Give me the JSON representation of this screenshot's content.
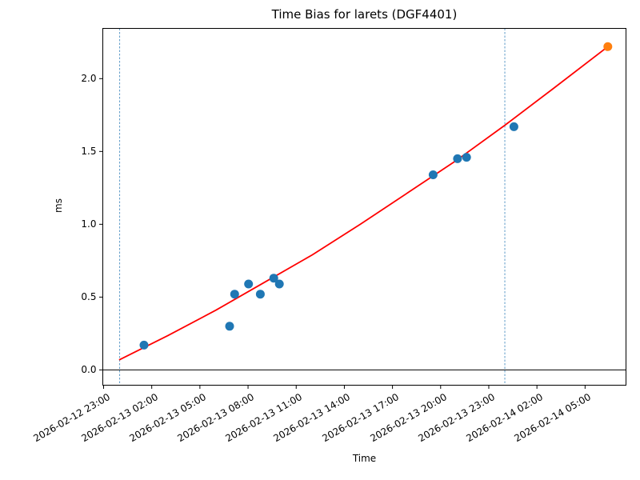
{
  "chart_data": {
    "type": "scatter",
    "title": "Time Bias for larets (DGF4401)",
    "xlabel": "Time",
    "ylabel": "ms",
    "grid": false,
    "legend": null,
    "xlim": [
      "2026-02-12 22:57",
      "2026-02-14 07:33"
    ],
    "ylim": [
      -0.105,
      2.345
    ],
    "xticks": [
      "2026-02-12 23:00",
      "2026-02-13 02:00",
      "2026-02-13 05:00",
      "2026-02-13 08:00",
      "2026-02-13 11:00",
      "2026-02-13 14:00",
      "2026-02-13 17:00",
      "2026-02-13 20:00",
      "2026-02-13 23:00",
      "2026-02-14 02:00",
      "2026-02-14 05:00"
    ],
    "yticks": [
      {
        "value": 0.0,
        "label": "0.0"
      },
      {
        "value": 0.5,
        "label": "0.5"
      },
      {
        "value": 1.0,
        "label": "1.0"
      },
      {
        "value": 1.5,
        "label": "1.5"
      },
      {
        "value": 2.0,
        "label": "2.0"
      }
    ],
    "series": [
      {
        "name": "scatter_blue",
        "type": "scatter",
        "color": "#1f77b4",
        "points": [
          {
            "x": "2026-02-13 01:31",
            "y": 0.17
          },
          {
            "x": "2026-02-13 06:51",
            "y": 0.3
          },
          {
            "x": "2026-02-13 07:10",
            "y": 0.52
          },
          {
            "x": "2026-02-13 08:02",
            "y": 0.59
          },
          {
            "x": "2026-02-13 08:46",
            "y": 0.52
          },
          {
            "x": "2026-02-13 09:36",
            "y": 0.63
          },
          {
            "x": "2026-02-13 09:57",
            "y": 0.59
          },
          {
            "x": "2026-02-13 19:32",
            "y": 1.34
          },
          {
            "x": "2026-02-13 21:03",
            "y": 1.45
          },
          {
            "x": "2026-02-13 21:37",
            "y": 1.46
          },
          {
            "x": "2026-02-14 00:34",
            "y": 1.67
          }
        ]
      },
      {
        "name": "scatter_orange",
        "type": "scatter",
        "color": "#ff7f0e",
        "points": [
          {
            "x": "2026-02-14 06:25",
            "y": 2.22
          }
        ]
      },
      {
        "name": "trend_line_red",
        "type": "line",
        "color": "#ff0000",
        "points": [
          {
            "x": "2026-02-13 00:00",
            "y": 0.07
          },
          {
            "x": "2026-02-13 03:00",
            "y": 0.235
          },
          {
            "x": "2026-02-13 06:00",
            "y": 0.41
          },
          {
            "x": "2026-02-13 09:00",
            "y": 0.6
          },
          {
            "x": "2026-02-13 12:00",
            "y": 0.79
          },
          {
            "x": "2026-02-13 15:00",
            "y": 1.0
          },
          {
            "x": "2026-02-13 18:00",
            "y": 1.22
          },
          {
            "x": "2026-02-13 21:00",
            "y": 1.44
          },
          {
            "x": "2026-02-14 00:00",
            "y": 1.68
          },
          {
            "x": "2026-02-14 03:00",
            "y": 1.93
          },
          {
            "x": "2026-02-14 06:25",
            "y": 2.22
          }
        ]
      }
    ],
    "vlines": [
      {
        "x": "2026-02-13 00:00",
        "style": "dashed",
        "color": "#5f9bc8"
      },
      {
        "x": "2026-02-14 00:00",
        "style": "dashed",
        "color": "#5f9bc8"
      }
    ],
    "hlines": [
      {
        "y": 0.0,
        "color": "#000000"
      }
    ],
    "colors": {
      "axis": "#000000",
      "background": "#ffffff"
    }
  }
}
